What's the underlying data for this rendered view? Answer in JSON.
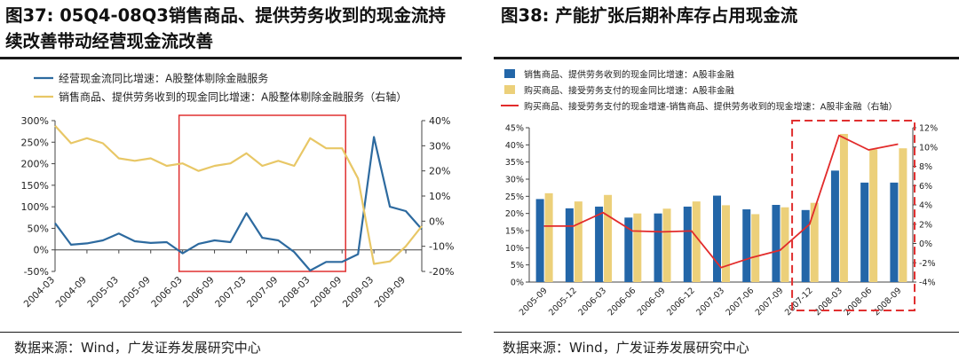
{
  "left": {
    "title_line1": "图37: 05Q4-08Q3销售商品、提供劳务收到的现金流持",
    "title_line2": "续改善带动经营现金流改善",
    "source": "数据来源：Wind，广发证券发展研究中心"
  },
  "right": {
    "title": "图38:  产能扩张后期补库存占用现金流",
    "source": "数据来源：Wind，广发证券发展研究中心"
  },
  "chart_data": [
    {
      "type": "line",
      "x_ticks": [
        "2004-03",
        "2004-09",
        "2005-03",
        "2005-09",
        "2006-03",
        "2006-09",
        "2007-03",
        "2007-09",
        "2008-03",
        "2008-09",
        "2009-03",
        "2009-09"
      ],
      "x": [
        "2004-03",
        "2004-06",
        "2004-09",
        "2004-12",
        "2005-03",
        "2005-06",
        "2005-09",
        "2005-12",
        "2006-03",
        "2006-06",
        "2006-09",
        "2006-12",
        "2007-03",
        "2007-06",
        "2007-09",
        "2007-12",
        "2008-03",
        "2008-06",
        "2008-09",
        "2008-12",
        "2009-03",
        "2009-06",
        "2009-09",
        "2009-12"
      ],
      "series": [
        {
          "name": "经营现金流同比增速：A股整体剔除金融服务",
          "axis": "left",
          "color": "#2d6a9f",
          "values": [
            62,
            12,
            15,
            22,
            38,
            20,
            16,
            18,
            -8,
            14,
            22,
            18,
            85,
            28,
            22,
            -5,
            -48,
            -28,
            -28,
            -10,
            262,
            100,
            90,
            48
          ]
        },
        {
          "name": "销售商品、提供劳务收到的现金同比增速：A股整体剔除金融服务（右轴）",
          "axis": "right",
          "color": "#e8c766",
          "values": [
            38,
            31,
            33,
            31,
            25,
            24,
            25,
            22,
            23,
            20,
            22,
            23,
            27,
            22,
            24,
            22,
            33,
            29,
            29,
            17,
            -17,
            -16,
            -10,
            -2
          ]
        }
      ],
      "y_left": {
        "min": -50,
        "max": 300,
        "step": 50,
        "format": "percent"
      },
      "y_right": {
        "min": -20,
        "max": 40,
        "step": 10,
        "format": "percent"
      },
      "highlight_box": {
        "from": "2006-03",
        "to": "2008-09",
        "color": "#e03030"
      },
      "legend_position": "top",
      "grid": false
    },
    {
      "type": "bar",
      "categories": [
        "2005-09",
        "2005-12",
        "2006-03",
        "2006-06",
        "2006-09",
        "2006-12",
        "2007-03",
        "2007-06",
        "2007-09",
        "2007-12",
        "2008-03",
        "2008-06",
        "2008-09"
      ],
      "series": [
        {
          "name": "销售商品、提供劳务收到的现金同比增速：A股非金融",
          "kind": "bar",
          "axis": "left",
          "color": "#2366a8",
          "values": [
            24.2,
            21.5,
            22,
            18.8,
            20,
            22,
            25.2,
            21.2,
            22.5,
            21,
            32.5,
            29,
            29
          ]
        },
        {
          "name": "购买商品、接受劳务支付的现金同比增速：A股非金融",
          "kind": "bar",
          "axis": "left",
          "color": "#ecd07a",
          "values": [
            25.9,
            23.5,
            25.4,
            20,
            21.4,
            23.5,
            22.4,
            19.8,
            21.8,
            23.1,
            43.2,
            38.7,
            39
          ]
        },
        {
          "name": "购买商品、接受劳务支付的现金增速-销售商品、提供劳务收到的现金增速：A股非金融（右轴）",
          "kind": "line",
          "axis": "right",
          "color": "#e22b2b",
          "values": [
            1.8,
            1.8,
            3.2,
            1.3,
            1.2,
            1.3,
            -2.5,
            -1.5,
            -0.7,
            2.0,
            11.2,
            9.7,
            10.3
          ]
        }
      ],
      "y_left": {
        "min": 0,
        "max": 45,
        "step": 5,
        "format": "percent"
      },
      "y_right": {
        "min": -4,
        "max": 12,
        "step": 2,
        "format": "percent"
      },
      "highlight_box": {
        "from": "2007-12",
        "to": "2008-09",
        "color": "#e03030",
        "dashed": true
      },
      "legend_position": "top-left",
      "grid": false
    }
  ]
}
